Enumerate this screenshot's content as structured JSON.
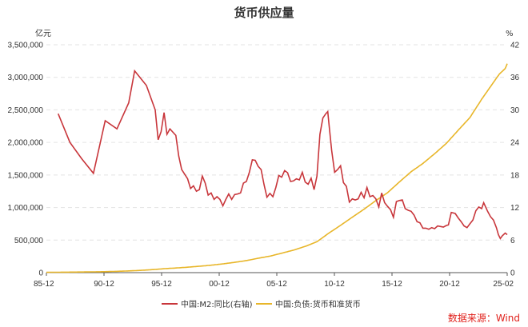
{
  "title": "货币供应量",
  "left_unit": "亿元",
  "right_unit": "%",
  "source": "数据来源：Wind",
  "colors": {
    "m2_growth": "#c8363b",
    "m2_level": "#e8b62a"
  },
  "chart_data": {
    "type": "line",
    "x_tick_labels": [
      "85-12",
      "90-12",
      "95-12",
      "00-12",
      "05-12",
      "10-12",
      "15-12",
      "20-12",
      "25-02"
    ],
    "x_range": [
      "1985-12",
      "2025-02"
    ],
    "y_left": {
      "range": [
        0,
        3500000
      ],
      "ticks": [
        "0",
        "500,000",
        "1,000,000",
        "1,500,000",
        "2,000,000",
        "2,500,000",
        "3,000,000",
        "3,500,000"
      ]
    },
    "y_right": {
      "range": [
        0,
        42
      ],
      "ticks": [
        "0",
        "6",
        "12",
        "18",
        "24",
        "30",
        "36",
        "42"
      ]
    },
    "grid": "horizontal dashed",
    "legend_position": "bottom",
    "series": [
      {
        "name": "中国:M2:同比(右轴)",
        "axis": "right",
        "points": [
          [
            "1986-12",
            29.3
          ],
          [
            "1987-12",
            24.0
          ],
          [
            "1988-12",
            21.0
          ],
          [
            "1989-12",
            18.3
          ],
          [
            "1990-12",
            28.0
          ],
          [
            "1991-12",
            26.5
          ],
          [
            "1992-12",
            31.3
          ],
          [
            "1993-06",
            37.2
          ],
          [
            "1994-06",
            34.5
          ],
          [
            "1995-03",
            30.0
          ],
          [
            "1995-06",
            24.5
          ],
          [
            "1995-09",
            26.0
          ],
          [
            "1995-12",
            29.5
          ],
          [
            "1996-03",
            25.5
          ],
          [
            "1996-06",
            26.5
          ],
          [
            "1996-12",
            25.3
          ],
          [
            "1997-03",
            21.5
          ],
          [
            "1997-06",
            19.0
          ],
          [
            "1997-12",
            17.3
          ],
          [
            "1998-03",
            15.5
          ],
          [
            "1998-06",
            16.0
          ],
          [
            "1998-09",
            15.0
          ],
          [
            "1998-12",
            15.3
          ],
          [
            "1999-03",
            17.8
          ],
          [
            "1999-06",
            16.5
          ],
          [
            "1999-09",
            14.3
          ],
          [
            "1999-12",
            14.7
          ],
          [
            "2000-03",
            13.5
          ],
          [
            "2000-06",
            14.0
          ],
          [
            "2000-09",
            13.5
          ],
          [
            "2000-12",
            12.3
          ],
          [
            "2001-03",
            13.5
          ],
          [
            "2001-06",
            14.5
          ],
          [
            "2001-09",
            13.5
          ],
          [
            "2001-12",
            14.4
          ],
          [
            "2002-03",
            14.5
          ],
          [
            "2002-06",
            14.7
          ],
          [
            "2002-09",
            16.5
          ],
          [
            "2002-12",
            16.8
          ],
          [
            "2003-03",
            18.5
          ],
          [
            "2003-06",
            20.8
          ],
          [
            "2003-09",
            20.7
          ],
          [
            "2003-12",
            19.6
          ],
          [
            "2004-03",
            19.0
          ],
          [
            "2004-06",
            16.2
          ],
          [
            "2004-09",
            13.9
          ],
          [
            "2004-12",
            14.6
          ],
          [
            "2005-03",
            14.0
          ],
          [
            "2005-06",
            15.7
          ],
          [
            "2005-09",
            17.9
          ],
          [
            "2005-12",
            17.6
          ],
          [
            "2006-03",
            18.8
          ],
          [
            "2006-06",
            18.4
          ],
          [
            "2006-09",
            16.8
          ],
          [
            "2006-12",
            16.9
          ],
          [
            "2007-03",
            17.3
          ],
          [
            "2007-06",
            17.1
          ],
          [
            "2007-09",
            18.5
          ],
          [
            "2007-12",
            16.7
          ],
          [
            "2008-03",
            16.3
          ],
          [
            "2008-06",
            17.4
          ],
          [
            "2008-09",
            15.3
          ],
          [
            "2008-12",
            17.8
          ],
          [
            "2009-03",
            25.5
          ],
          [
            "2009-06",
            28.5
          ],
          [
            "2009-09",
            29.3
          ],
          [
            "2009-11",
            29.7
          ],
          [
            "2009-12",
            27.7
          ],
          [
            "2010-03",
            22.5
          ],
          [
            "2010-06",
            18.5
          ],
          [
            "2010-09",
            19.0
          ],
          [
            "2010-12",
            19.7
          ],
          [
            "2011-03",
            16.6
          ],
          [
            "2011-06",
            15.9
          ],
          [
            "2011-09",
            13.0
          ],
          [
            "2011-12",
            13.6
          ],
          [
            "2012-03",
            13.4
          ],
          [
            "2012-06",
            13.6
          ],
          [
            "2012-09",
            14.8
          ],
          [
            "2012-12",
            13.8
          ],
          [
            "2013-03",
            15.7
          ],
          [
            "2013-06",
            14.0
          ],
          [
            "2013-09",
            14.2
          ],
          [
            "2013-12",
            13.6
          ],
          [
            "2014-03",
            12.1
          ],
          [
            "2014-06",
            14.7
          ],
          [
            "2014-09",
            12.9
          ],
          [
            "2014-12",
            12.2
          ],
          [
            "2015-03",
            11.6
          ],
          [
            "2015-06",
            10.2
          ],
          [
            "2015-09",
            13.1
          ],
          [
            "2015-12",
            13.3
          ],
          [
            "2016-03",
            13.4
          ],
          [
            "2016-06",
            11.8
          ],
          [
            "2016-09",
            11.5
          ],
          [
            "2016-12",
            11.3
          ],
          [
            "2017-03",
            10.6
          ],
          [
            "2017-06",
            9.4
          ],
          [
            "2017-09",
            9.2
          ],
          [
            "2017-12",
            8.2
          ],
          [
            "2018-03",
            8.2
          ],
          [
            "2018-06",
            8.0
          ],
          [
            "2018-09",
            8.3
          ],
          [
            "2018-12",
            8.1
          ],
          [
            "2019-03",
            8.6
          ],
          [
            "2019-06",
            8.5
          ],
          [
            "2019-09",
            8.4
          ],
          [
            "2019-12",
            8.7
          ],
          [
            "2020-02",
            8.8
          ],
          [
            "2020-05",
            11.1
          ],
          [
            "2020-09",
            10.9
          ],
          [
            "2020-12",
            10.1
          ],
          [
            "2021-03",
            9.4
          ],
          [
            "2021-06",
            8.6
          ],
          [
            "2021-09",
            8.3
          ],
          [
            "2021-12",
            9.0
          ],
          [
            "2022-03",
            9.7
          ],
          [
            "2022-06",
            11.4
          ],
          [
            "2022-09",
            12.1
          ],
          [
            "2022-12",
            11.8
          ],
          [
            "2023-02",
            12.9
          ],
          [
            "2023-06",
            11.3
          ],
          [
            "2023-09",
            10.3
          ],
          [
            "2023-12",
            9.7
          ],
          [
            "2024-03",
            8.3
          ],
          [
            "2024-05",
            7.0
          ],
          [
            "2024-07",
            6.3
          ],
          [
            "2024-09",
            6.8
          ],
          [
            "2024-12",
            7.3
          ],
          [
            "2025-02",
            7.0
          ]
        ]
      },
      {
        "name": "中国:负债:货币和准货币",
        "axis": "left",
        "points": [
          [
            "1985-12",
            5199
          ],
          [
            "1990-12",
            15293
          ],
          [
            "1995-12",
            60750
          ],
          [
            "2000-12",
            134610
          ],
          [
            "2001-12",
            158302
          ],
          [
            "2002-12",
            185007
          ],
          [
            "2003-12",
            221223
          ],
          [
            "2004-12",
            253208
          ],
          [
            "2005-12",
            298756
          ],
          [
            "2006-12",
            345578
          ],
          [
            "2007-12",
            403442
          ],
          [
            "2008-12",
            475167
          ],
          [
            "2009-12",
            606225
          ],
          [
            "2010-12",
            725852
          ],
          [
            "2011-12",
            851591
          ],
          [
            "2012-12",
            974149
          ],
          [
            "2013-12",
            1106525
          ],
          [
            "2014-12",
            1228375
          ],
          [
            "2015-12",
            1392278
          ],
          [
            "2016-12",
            1550067
          ],
          [
            "2017-12",
            1676769
          ],
          [
            "2018-12",
            1826744
          ],
          [
            "2019-12",
            1986489
          ],
          [
            "2020-12",
            2186796
          ],
          [
            "2021-12",
            2382900
          ],
          [
            "2022-12",
            2664321
          ],
          [
            "2023-12",
            2922713
          ],
          [
            "2024-06",
            3050200
          ],
          [
            "2024-12",
            3135000
          ],
          [
            "2025-02",
            3209000
          ]
        ]
      }
    ]
  }
}
